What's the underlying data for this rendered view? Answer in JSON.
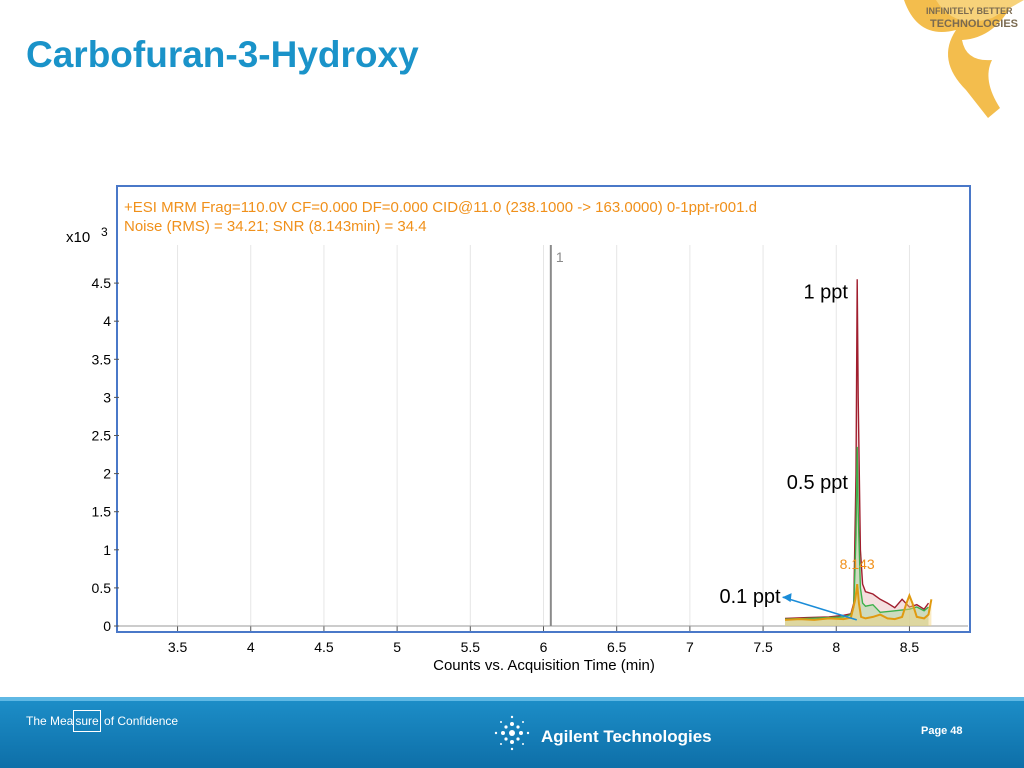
{
  "slide": {
    "title": "Carbofuran-3-Hydroxy"
  },
  "badge": {
    "line1": "INFINITELY BETTER",
    "line2": "TECHNOLOGIES"
  },
  "footer": {
    "tagline_pre": "The Mea",
    "tagline_boxed": "sure",
    "tagline_post": " of Confidence",
    "company": "Agilent Technologies",
    "page_label": "Page",
    "page_number": "48"
  },
  "colors": {
    "title": "#1a93c9",
    "header_text": "#f0901a",
    "frame": "#4a78c8",
    "ppt_1": "#a01e2e",
    "ppt_0_5": "#3cb04a",
    "ppt_0_1": "#e09a10",
    "annotation_arrow": "#1a8cd8"
  },
  "chart_data": {
    "type": "line",
    "header_line1": "+ESI MRM Frag=110.0V CF=0.000 DF=0.000 CID@11.0 (238.1000 -> 163.0000) 0-1ppt-r001.d",
    "header_line2": "Noise (RMS) = 34.21; SNR (8.143min) = 34.4",
    "xlabel": "Counts vs. Acquisition Time (min)",
    "y_multiplier": "x10",
    "y_exponent": "3",
    "xlim": [
      3.1,
      8.9
    ],
    "ylim": [
      0,
      5
    ],
    "x_ticks": [
      "3.5",
      "4",
      "4.5",
      "5",
      "5.5",
      "6",
      "6.5",
      "7",
      "7.5",
      "8",
      "8.5"
    ],
    "y_ticks": [
      "0",
      "0.5",
      "1",
      "1.5",
      "2",
      "2.5",
      "3",
      "3.5",
      "4",
      "4.5"
    ],
    "marker": {
      "x": 6.05,
      "label": "1"
    },
    "peak_label": {
      "x": 8.143,
      "y": 0.75,
      "text": "8.143"
    },
    "series": [
      {
        "name": "1 ppt",
        "label_at": [
          8.08,
          4.3
        ],
        "x": [
          7.65,
          7.8,
          7.95,
          8.05,
          8.1,
          8.12,
          8.135,
          8.143,
          8.15,
          8.165,
          8.18,
          8.2,
          8.25,
          8.3,
          8.35,
          8.4,
          8.45,
          8.5,
          8.55,
          8.6,
          8.63
        ],
        "y": [
          0.1,
          0.11,
          0.12,
          0.14,
          0.16,
          0.3,
          2.0,
          4.55,
          3.0,
          1.0,
          0.55,
          0.45,
          0.42,
          0.35,
          0.3,
          0.24,
          0.35,
          0.25,
          0.28,
          0.22,
          0.3
        ]
      },
      {
        "name": "0.5 ppt",
        "label_at": [
          8.08,
          1.8
        ],
        "x": [
          7.65,
          7.8,
          7.95,
          8.05,
          8.1,
          8.12,
          8.135,
          8.143,
          8.15,
          8.165,
          8.18,
          8.2,
          8.25,
          8.3,
          8.4,
          8.5,
          8.55,
          8.6,
          8.63
        ],
        "y": [
          0.09,
          0.1,
          0.11,
          0.12,
          0.15,
          0.25,
          1.2,
          2.35,
          1.5,
          0.5,
          0.3,
          0.26,
          0.28,
          0.18,
          0.2,
          0.22,
          0.25,
          0.2,
          0.25
        ]
      },
      {
        "name": "0.1 ppt",
        "label_at": [
          7.62,
          0.3
        ],
        "x": [
          7.65,
          7.75,
          7.85,
          7.95,
          8.05,
          8.1,
          8.13,
          8.143,
          8.155,
          8.17,
          8.2,
          8.25,
          8.3,
          8.35,
          8.4,
          8.45,
          8.48,
          8.5,
          8.52,
          8.55,
          8.6,
          8.63,
          8.65
        ],
        "y": [
          0.08,
          0.09,
          0.08,
          0.1,
          0.09,
          0.11,
          0.35,
          0.55,
          0.3,
          0.12,
          0.1,
          0.12,
          0.15,
          0.1,
          0.09,
          0.12,
          0.3,
          0.4,
          0.3,
          0.12,
          0.1,
          0.15,
          0.35
        ]
      }
    ]
  }
}
